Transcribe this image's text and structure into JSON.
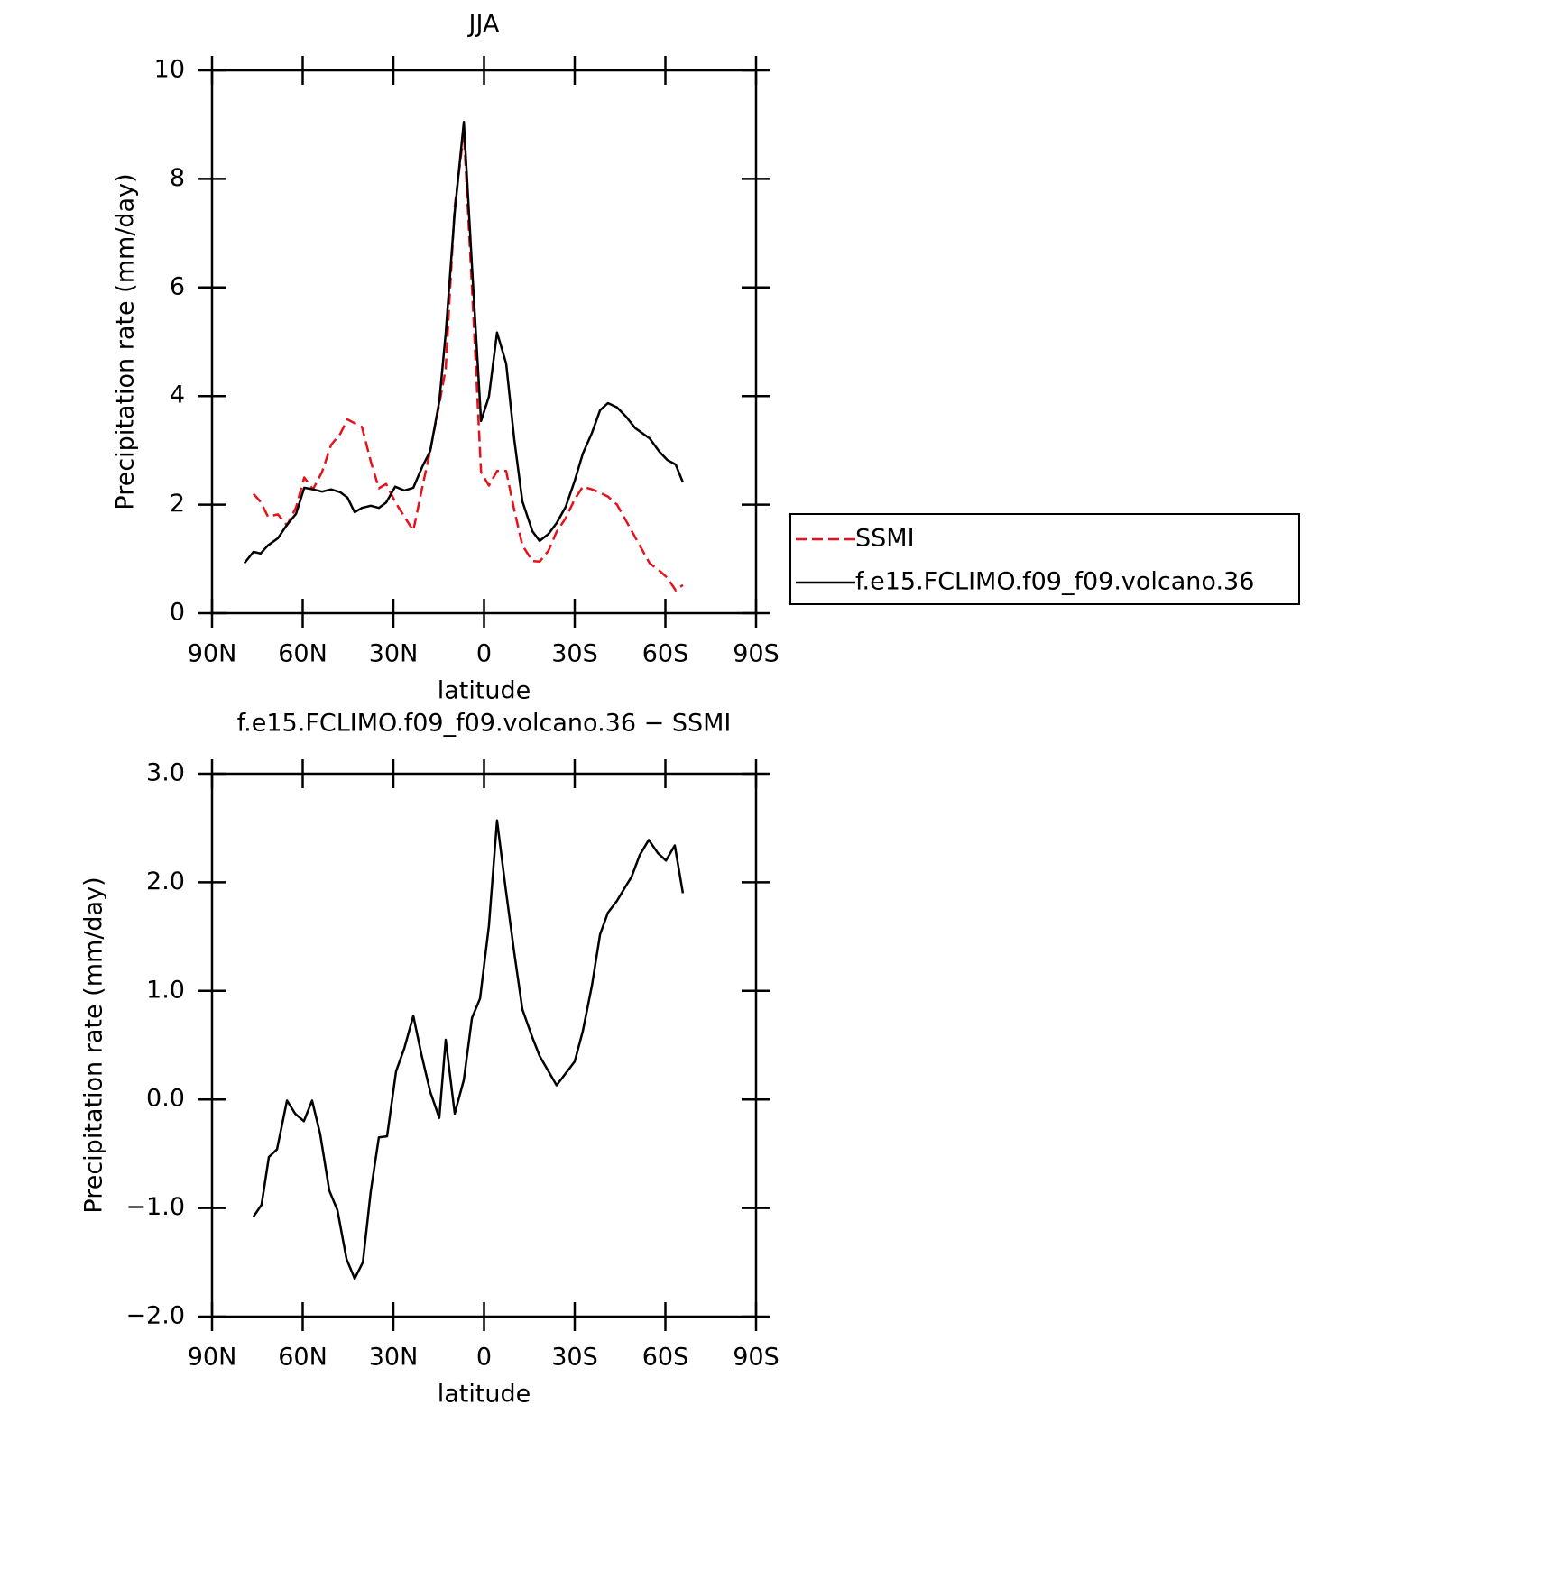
{
  "chart_data": [
    {
      "type": "line",
      "title": "JJA",
      "xlabel": "latitude",
      "ylabel": "Precipitation rate (mm/day)",
      "x": [
        79.3,
        76.3,
        73.9,
        71.5,
        68.2,
        65.2,
        62.2,
        59.5,
        56.6,
        53.6,
        50.6,
        47.6,
        45.2,
        42.8,
        40.4,
        37.5,
        34.8,
        32.4,
        29.4,
        26.4,
        23.4,
        20.5,
        17.8,
        14.8,
        12.7,
        9.7,
        6.7,
        4.0,
        1.0,
        -1.6,
        -4.3,
        -7.3,
        -10.0,
        -12.7,
        -16.0,
        -18.4,
        -21.3,
        -24.0,
        -27.0,
        -30.0,
        -32.7,
        -35.7,
        -38.4,
        -41.0,
        -44.0,
        -47.0,
        -50.0,
        -53.0,
        -54.8,
        -58.1,
        -60.7,
        -63.4,
        -65.8
      ],
      "series": [
        {
          "name": "SSMI",
          "color": "#e8101a",
          "dash": true,
          "values": [
            null,
            2.2,
            2.05,
            1.78,
            1.82,
            1.62,
            1.95,
            2.5,
            2.28,
            2.6,
            3.1,
            3.3,
            3.57,
            3.5,
            3.43,
            2.8,
            2.3,
            2.38,
            2.05,
            1.78,
            1.52,
            2.3,
            3.0,
            3.85,
            4.5,
            7.5,
            8.85,
            6.0,
            2.6,
            2.35,
            2.62,
            2.62,
            1.9,
            1.25,
            0.96,
            0.95,
            1.15,
            1.5,
            1.75,
            2.1,
            2.33,
            2.28,
            2.22,
            2.15,
            2.0,
            1.7,
            1.4,
            1.1,
            0.92,
            0.78,
            0.65,
            0.42,
            0.52
          ]
        },
        {
          "name": "f.e15.FCLIMO.f09_f09.volcano.36",
          "color": "#000000",
          "dash": false,
          "values": [
            0.92,
            1.13,
            1.1,
            1.25,
            1.38,
            1.63,
            1.83,
            2.31,
            2.28,
            2.24,
            2.28,
            2.23,
            2.13,
            1.86,
            1.94,
            1.98,
            1.94,
            2.04,
            2.33,
            2.26,
            2.31,
            2.69,
            2.99,
            3.9,
            5.15,
            7.39,
            9.05,
            6.4,
            3.54,
            3.99,
            5.17,
            4.6,
            3.2,
            2.06,
            1.51,
            1.33,
            1.46,
            1.66,
            1.96,
            2.44,
            2.94,
            3.32,
            3.74,
            3.87,
            3.79,
            3.62,
            3.41,
            3.29,
            3.22,
            2.97,
            2.82,
            2.74,
            2.41
          ]
        }
      ],
      "xlim": [
        90,
        -90
      ],
      "xticks": [
        {
          "value": 90,
          "label": "90N"
        },
        {
          "value": 60,
          "label": "60N"
        },
        {
          "value": 30,
          "label": "30N"
        },
        0,
        {
          "value": -30,
          "label": "30S"
        },
        {
          "value": -60,
          "label": "60S"
        },
        {
          "value": -90,
          "label": "90S"
        }
      ],
      "ylim": [
        0,
        10
      ],
      "yticks": [
        0,
        2,
        4,
        6,
        8,
        10
      ],
      "legend": "right"
    },
    {
      "type": "line",
      "title": "f.e15.FCLIMO.f09_f09.volcano.36 − SSMI",
      "xlabel": "latitude",
      "ylabel": "Precipitation rate (mm/day)",
      "x": [
        76.3,
        73.6,
        71.2,
        68.5,
        65.2,
        62.5,
        59.6,
        56.9,
        54.2,
        51.2,
        48.5,
        45.5,
        42.8,
        40.1,
        37.5,
        34.8,
        32.1,
        29.1,
        26.4,
        23.4,
        20.7,
        17.8,
        14.8,
        12.7,
        9.7,
        6.7,
        4.0,
        1.3,
        -1.6,
        -4.3,
        -7.0,
        -10.0,
        -12.7,
        -16.0,
        -18.4,
        -24.0,
        -30.0,
        -32.7,
        -35.7,
        -38.4,
        -41.0,
        -44.0,
        -47.0,
        -48.8,
        -51.5,
        -54.5,
        -57.5,
        -60.2,
        -63.1,
        -65.8
      ],
      "series": [
        {
          "color": "#000000",
          "dash": false,
          "values": [
            -1.08,
            -0.97,
            -0.53,
            -0.46,
            -0.01,
            -0.13,
            -0.2,
            -0.01,
            -0.32,
            -0.84,
            -1.02,
            -1.47,
            -1.65,
            -1.5,
            -0.85,
            -0.35,
            -0.34,
            0.26,
            0.47,
            0.77,
            0.41,
            0.07,
            -0.17,
            0.55,
            -0.13,
            0.18,
            0.75,
            0.93,
            1.6,
            2.57,
            1.97,
            1.35,
            0.83,
            0.57,
            0.4,
            0.13,
            0.35,
            0.63,
            1.05,
            1.52,
            1.72,
            1.83,
            1.97,
            2.05,
            2.25,
            2.39,
            2.27,
            2.2,
            2.34,
            1.9
          ]
        }
      ],
      "xlim": [
        90,
        -90
      ],
      "xticks": [
        {
          "value": 90,
          "label": "90N"
        },
        {
          "value": 60,
          "label": "60N"
        },
        {
          "value": 30,
          "label": "30N"
        },
        0,
        {
          "value": -30,
          "label": "30S"
        },
        {
          "value": -60,
          "label": "60S"
        },
        {
          "value": -90,
          "label": "90S"
        }
      ],
      "ylim": [
        -2,
        3
      ],
      "yticks": [
        {
          "value": 3,
          "label": "3.0"
        },
        {
          "value": 2,
          "label": "2.0"
        },
        {
          "value": 1,
          "label": "1.0"
        },
        {
          "value": 0,
          "label": "0.0"
        },
        {
          "value": -1,
          "label": "−1.0"
        },
        {
          "value": -2,
          "label": "−2.0"
        }
      ]
    }
  ]
}
